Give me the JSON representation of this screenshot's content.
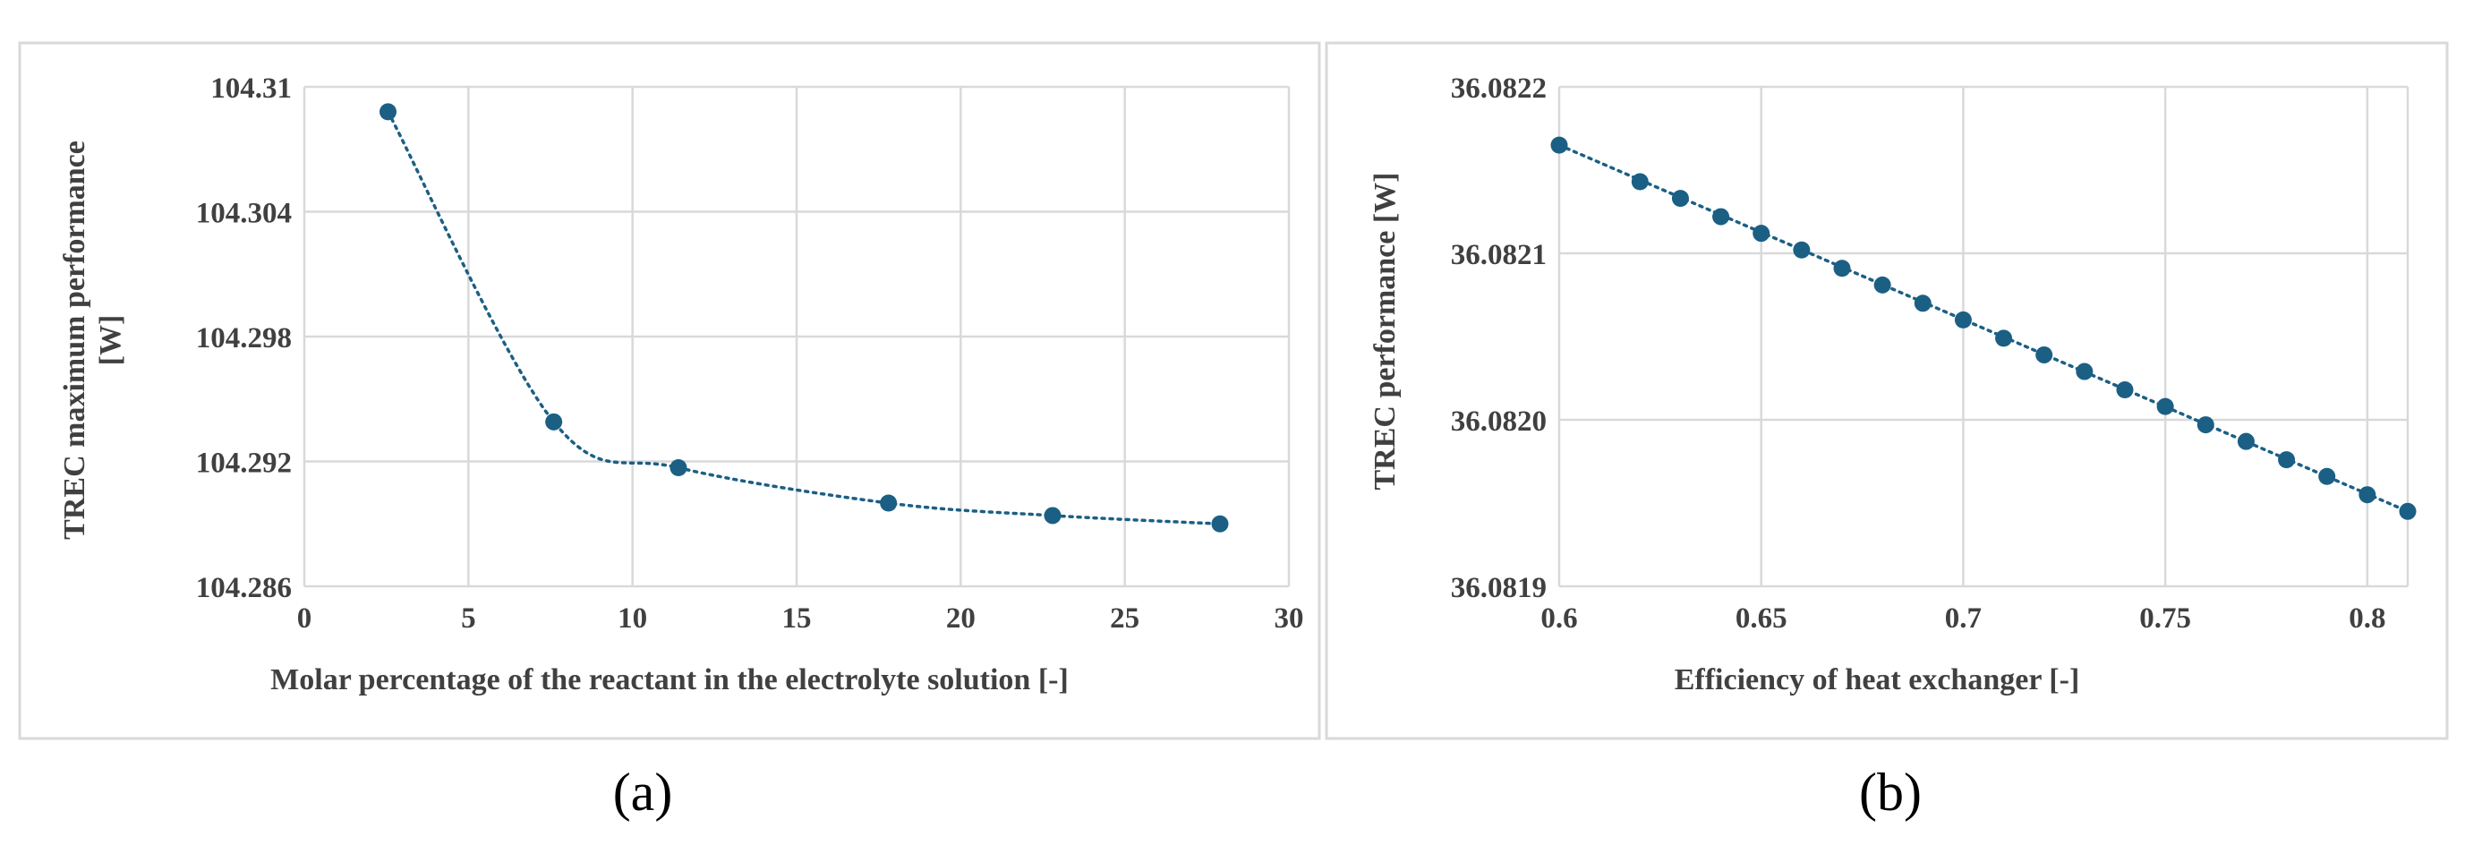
{
  "chart_data": [
    {
      "type": "scatter",
      "marker_color": "#1b5f84",
      "trendline": "smooth dotted",
      "xlabel": "Molar percentage of the reactant in the electrolyte solution [-]",
      "ylabel_lines": [
        "TREC maximum performance",
        "[W]"
      ],
      "xlim": [
        0,
        30
      ],
      "ylim": [
        104.286,
        104.31
      ],
      "xticks": [
        0,
        5,
        10,
        15,
        20,
        25,
        30
      ],
      "xtick_labels": [
        "0",
        "5",
        "10",
        "15",
        "20",
        "25",
        "30"
      ],
      "yticks": [
        104.286,
        104.292,
        104.298,
        104.304,
        104.31
      ],
      "ytick_labels": [
        "104.286",
        "104.292",
        "104.298",
        "104.304",
        "104.31"
      ],
      "x": [
        2.55,
        7.6,
        11.4,
        17.8,
        22.8,
        27.9
      ],
      "y": [
        104.3088,
        104.2939,
        104.2917,
        104.29,
        104.2894,
        104.289
      ],
      "caption": "(a)"
    },
    {
      "type": "scatter",
      "marker_color": "#1b5f84",
      "trendline": "linear dotted",
      "xlabel": "Efficiency of heat exchanger [-]",
      "ylabel_lines": [
        "TREC performance [W]"
      ],
      "xlim": [
        0.6,
        0.81
      ],
      "ylim": [
        36.0819,
        36.0822
      ],
      "xticks": [
        0.6,
        0.65,
        0.7,
        0.75,
        0.8
      ],
      "xtick_labels": [
        "0.6",
        "0.65",
        "0.7",
        "0.75",
        "0.8"
      ],
      "yticks": [
        36.0819,
        36.082,
        36.0821,
        36.0822
      ],
      "ytick_labels": [
        "36.0819",
        "36.0820",
        "36.0821",
        "36.0822"
      ],
      "x": [
        0.6,
        0.62,
        0.63,
        0.64,
        0.65,
        0.66,
        0.67,
        0.68,
        0.69,
        0.7,
        0.71,
        0.72,
        0.73,
        0.74,
        0.75,
        0.76,
        0.77,
        0.78,
        0.79,
        0.8,
        0.81
      ],
      "y": [
        36.082165,
        36.082143,
        36.082133,
        36.082122,
        36.082112,
        36.082102,
        36.082091,
        36.082081,
        36.08207,
        36.08206,
        36.082049,
        36.082039,
        36.082029,
        36.082018,
        36.082008,
        36.081997,
        36.081987,
        36.081976,
        36.081966,
        36.081955,
        36.081945
      ],
      "caption": "(b)"
    }
  ]
}
